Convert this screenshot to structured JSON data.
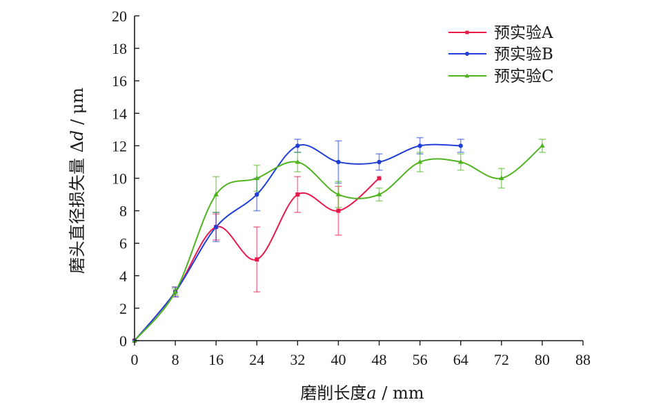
{
  "chart_data": {
    "type": "line",
    "xlabel_text": "磨削长度",
    "xlabel_var": "a",
    "xlabel_unit": " / mm",
    "ylabel_text": "磨头直径损失量 Δ",
    "ylabel_var": "d",
    "ylabel_unit": " / μm",
    "xlim": [
      0,
      88
    ],
    "ylim": [
      0,
      20
    ],
    "x_ticks": [
      0,
      8,
      16,
      24,
      32,
      40,
      48,
      56,
      64,
      72,
      80,
      88
    ],
    "y_ticks": [
      0,
      2,
      4,
      6,
      8,
      10,
      12,
      14,
      16,
      18,
      20
    ],
    "grid": false,
    "legend_position": "top-right",
    "series": [
      {
        "name": "预实验A",
        "color": "#e8194a",
        "marker": "square",
        "x": [
          0,
          8,
          16,
          24,
          32,
          40,
          48
        ],
        "y": [
          0,
          3,
          7,
          5,
          9,
          8,
          10
        ],
        "err": [
          0,
          0.3,
          0.8,
          2.0,
          1.1,
          1.5,
          0
        ]
      },
      {
        "name": "预实验B",
        "color": "#1f3fd6",
        "marker": "circle",
        "x": [
          0,
          8,
          16,
          24,
          32,
          40,
          48,
          56,
          64
        ],
        "y": [
          0,
          3,
          7,
          9,
          12,
          11,
          11,
          12,
          12
        ],
        "err": [
          0,
          0.3,
          0.9,
          1.0,
          0.4,
          1.3,
          0.5,
          0.5,
          0.4
        ]
      },
      {
        "name": "预实验C",
        "color": "#4fb31f",
        "marker": "triangle",
        "x": [
          0,
          8,
          16,
          24,
          32,
          40,
          48,
          56,
          64,
          72,
          80
        ],
        "y": [
          0,
          3,
          9,
          10,
          11,
          9,
          9,
          11,
          11,
          10,
          12
        ],
        "err": [
          0,
          0.2,
          1.1,
          0.8,
          0.6,
          0.8,
          0.4,
          0.6,
          0.5,
          0.6,
          0.4
        ]
      }
    ]
  }
}
